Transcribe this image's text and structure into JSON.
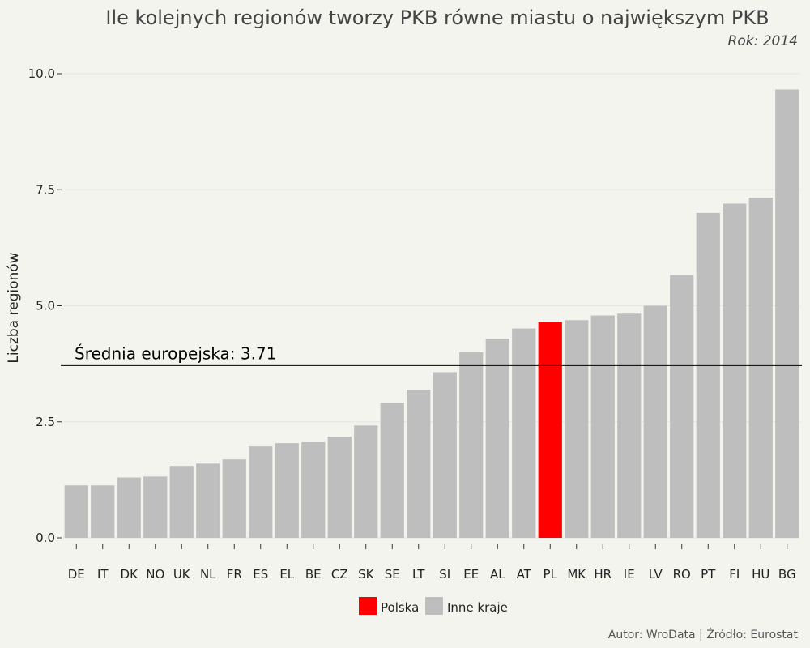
{
  "chart_data": {
    "type": "bar",
    "title": "Ile kolejnych regionów tworzy PKB równe miastu o największym PKB",
    "subtitle": "Rok: 2014",
    "xlabel": "",
    "ylabel": "Liczba regionów",
    "ylim": [
      0,
      10
    ],
    "yticks": [
      "0.0",
      "2.5",
      "5.0",
      "7.5",
      "10.0"
    ],
    "ytick_values": [
      0,
      2.5,
      5,
      7.5,
      10
    ],
    "grid": true,
    "legend_position": "bottom",
    "categories": [
      "DE",
      "IT",
      "DK",
      "NO",
      "UK",
      "NL",
      "FR",
      "ES",
      "EL",
      "BE",
      "CZ",
      "SK",
      "SE",
      "LT",
      "SI",
      "EE",
      "AL",
      "AT",
      "PL",
      "MK",
      "HR",
      "IE",
      "LV",
      "RO",
      "PT",
      "FI",
      "HU",
      "BG"
    ],
    "values": [
      1.13,
      1.13,
      1.3,
      1.32,
      1.55,
      1.6,
      1.69,
      1.97,
      2.04,
      2.06,
      2.18,
      2.42,
      2.91,
      3.19,
      3.57,
      4.0,
      4.29,
      4.51,
      4.65,
      4.69,
      4.79,
      4.83,
      5.0,
      5.66,
      7.0,
      7.2,
      7.33,
      9.66
    ],
    "highlight": "PL",
    "colors": {
      "highlight": "#ff0000",
      "other": "#bebebe",
      "avg_line": "#000000",
      "grid": "#e6e6e0"
    },
    "average": {
      "value": 3.71,
      "label": "Średnia europejska: 3.71"
    },
    "legend": [
      {
        "label": "Polska",
        "color": "#ff0000"
      },
      {
        "label": "Inne kraje",
        "color": "#bebebe"
      }
    ],
    "caption": "Autor: WroData | Źródło: Eurostat"
  }
}
